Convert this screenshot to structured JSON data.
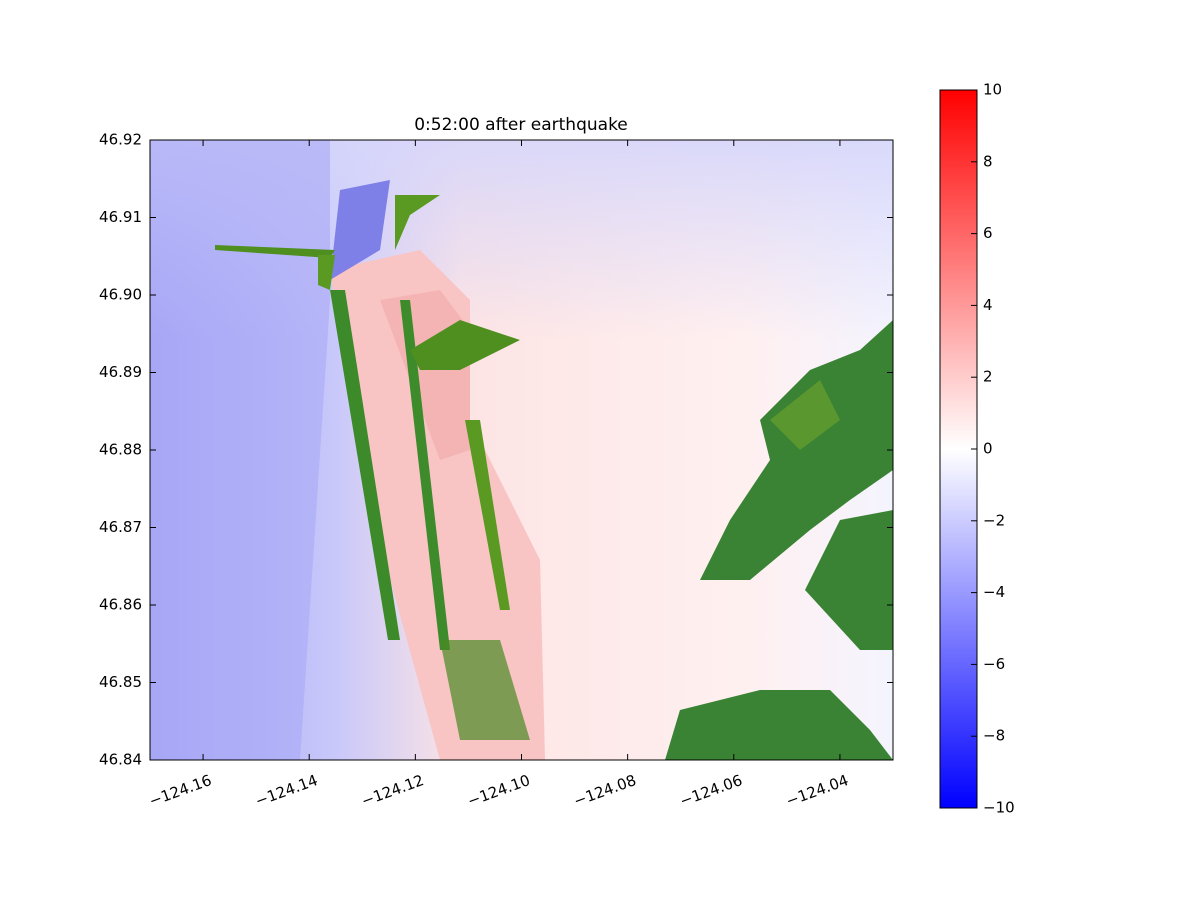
{
  "chart_data": {
    "type": "heatmap",
    "title": "0:52:00 after earthquake",
    "xlim": [
      -124.17,
      -124.03
    ],
    "xticks": [
      {
        "value": -124.16,
        "label": "−124.16"
      },
      {
        "value": -124.14,
        "label": "−124.14"
      },
      {
        "value": -124.12,
        "label": "−124.12"
      },
      {
        "value": -124.1,
        "label": "−124.10"
      },
      {
        "value": -124.08,
        "label": "−124.08"
      },
      {
        "value": -124.06,
        "label": "−124.06"
      },
      {
        "value": -124.04,
        "label": "−124.04"
      }
    ],
    "ylim": [
      46.84,
      46.92
    ],
    "yticks": [
      46.84,
      46.85,
      46.86,
      46.87,
      46.88,
      46.89,
      {
        "value": 46.9,
        "label": "46.90"
      },
      46.91,
      46.92
    ],
    "colorbar": {
      "lim": [
        -10,
        10
      ],
      "colors": [
        "#0000ff",
        "#ffffff",
        "#ff0000"
      ],
      "ticks": [
        {
          "value": -10,
          "label": "−10"
        },
        {
          "value": -8,
          "label": "−8"
        },
        {
          "value": -6,
          "label": "−6"
        },
        {
          "value": -4,
          "label": "−4"
        },
        {
          "value": -2,
          "label": "−2"
        },
        0,
        2,
        4,
        6,
        8,
        10
      ]
    }
  }
}
